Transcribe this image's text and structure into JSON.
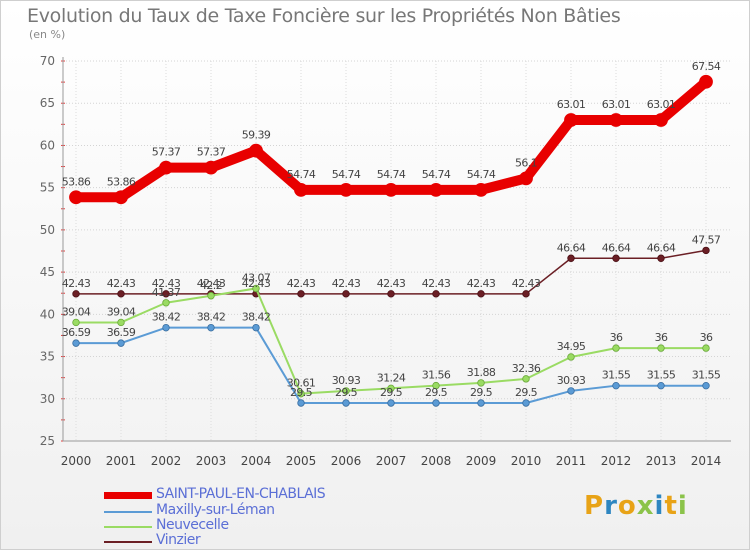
{
  "title": "Evolution du Taux de Taxe Foncière sur les Propriétés Non Bâties",
  "unit": "(en %)",
  "brand": "Proxiti",
  "colors": {
    "SAINT-PAUL-EN-CHABLAIS": "#e80000",
    "Maxilly-sur-Léman": "#5b9bd5",
    "Neuvecelle": "#9adb63",
    "Vinzier": "#6b1f25"
  },
  "chart_data": {
    "type": "line",
    "title": "Evolution du Taux de Taxe Foncière sur les Propriétés Non Bâties",
    "ylabel": "(en %)",
    "xlabel": "",
    "ylim": [
      25,
      70
    ],
    "yticks": [
      25,
      30,
      35,
      40,
      45,
      50,
      55,
      60,
      65,
      70
    ],
    "categories": [
      "2000",
      "2001",
      "2002",
      "2003",
      "2004",
      "2005",
      "2006",
      "2007",
      "2008",
      "2009",
      "2010",
      "2011",
      "2012",
      "2013",
      "2014"
    ],
    "grid": true,
    "series": [
      {
        "name": "SAINT-PAUL-EN-CHABLAIS",
        "values": [
          53.86,
          53.86,
          57.37,
          57.37,
          59.39,
          54.74,
          54.74,
          54.74,
          54.74,
          54.74,
          56.1,
          63.01,
          63.01,
          63.01,
          67.54
        ],
        "labels": [
          "53.86",
          "53.86",
          "57.37",
          "57.37",
          "59.39",
          "54.74",
          "54.74",
          "54.74",
          "54.74",
          "54.74",
          "56.1",
          "63.01",
          "63.01",
          "63.01",
          "67.54"
        ]
      },
      {
        "name": "Maxilly-sur-Léman",
        "values": [
          36.59,
          36.59,
          38.42,
          38.42,
          38.42,
          29.5,
          29.5,
          29.5,
          29.5,
          29.5,
          29.5,
          30.93,
          31.55,
          31.55,
          31.55
        ],
        "labels": [
          "36.59",
          "36.59",
          "38.42",
          "38.42",
          "38.42",
          "29.5",
          "29.5",
          "29.5",
          "29.5",
          "29.5",
          "29.5",
          "30.93",
          "31.55",
          "31.55",
          "31.55"
        ]
      },
      {
        "name": "Neuvecelle",
        "values": [
          39.04,
          39.04,
          41.37,
          42.2,
          43.07,
          30.61,
          30.93,
          31.24,
          31.56,
          31.88,
          32.36,
          34.95,
          36,
          36,
          36
        ],
        "labels": [
          "39.04",
          "39.04",
          "41.37",
          "42.2",
          "43.07",
          "30.61",
          "30.93",
          "31.24",
          "31.56",
          "31.88",
          "32.36",
          "34.95",
          "36",
          "36",
          "36"
        ]
      },
      {
        "name": "Vinzier",
        "values": [
          42.43,
          42.43,
          42.43,
          42.43,
          42.43,
          42.43,
          42.43,
          42.43,
          42.43,
          42.43,
          42.43,
          46.64,
          46.64,
          46.64,
          47.57
        ],
        "labels": [
          "42.43",
          "42.43",
          "42.43",
          "42.43",
          "42.43",
          "42.43",
          "42.43",
          "42.43",
          "42.43",
          "42.43",
          "42.43",
          "46.64",
          "46.64",
          "46.64",
          "47.57"
        ]
      }
    ]
  }
}
